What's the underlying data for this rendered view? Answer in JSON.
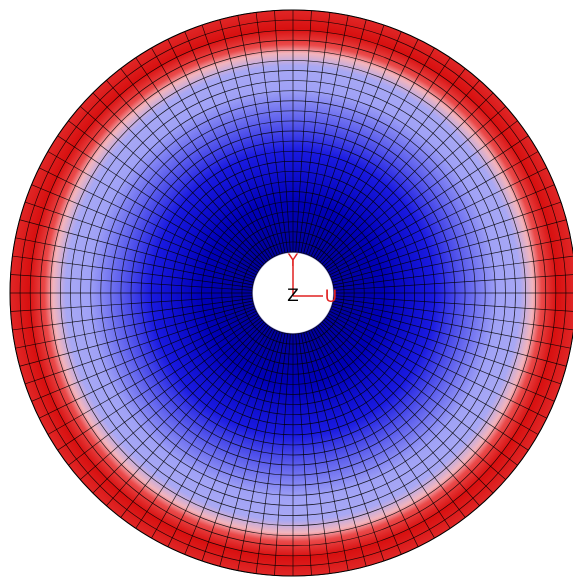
{
  "triad": {
    "y": "Y",
    "z": "Z",
    "u": "U"
  }
}
